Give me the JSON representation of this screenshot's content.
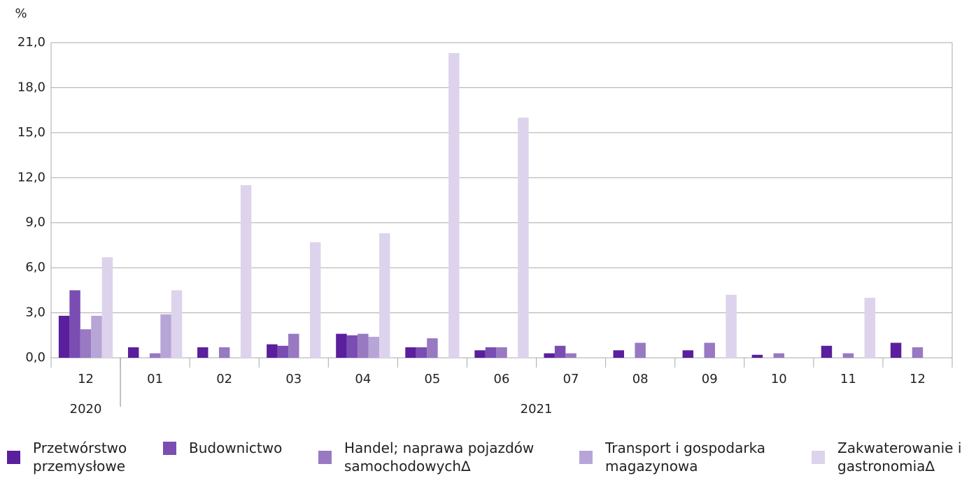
{
  "chart_data": {
    "type": "bar",
    "y_unit": "%",
    "categories": [
      "12",
      "01",
      "02",
      "03",
      "04",
      "05",
      "06",
      "07",
      "08",
      "09",
      "10",
      "11",
      "12"
    ],
    "year_groups": [
      {
        "label": "2020",
        "span": 1
      },
      {
        "label": "2021",
        "span": 12
      }
    ],
    "series": [
      {
        "name": "Przetwórstwo przemysłowe",
        "color": "#5a1f9c",
        "values": [
          2.8,
          0.7,
          0.7,
          0.9,
          1.6,
          0.7,
          0.5,
          0.3,
          0.5,
          0.5,
          0.2,
          0.8,
          1.0
        ]
      },
      {
        "name": "Budownictwo",
        "color": "#7a4db3",
        "values": [
          4.5,
          0,
          0,
          0.8,
          1.5,
          0.7,
          0.7,
          0.8,
          0,
          0,
          0,
          0,
          0
        ]
      },
      {
        "name": "Handel; naprawa pojazdów samochodowych∆",
        "color": "#9879c2",
        "values": [
          1.9,
          0.3,
          0.7,
          1.6,
          1.6,
          1.3,
          0.7,
          0.3,
          1.0,
          1.0,
          0.3,
          0.3,
          0.7
        ]
      },
      {
        "name": "Transport i gospodarka magazynowa",
        "color": "#b8a5d7",
        "values": [
          2.8,
          2.9,
          0,
          0,
          1.4,
          0,
          0,
          0,
          0,
          0,
          0,
          0,
          0
        ]
      },
      {
        "name": "Zakwaterowanie i gastronomia∆",
        "color": "#ddd3ec",
        "values": [
          6.7,
          4.5,
          11.5,
          7.7,
          8.3,
          20.3,
          16.0,
          0,
          0,
          4.2,
          0,
          4.0,
          0
        ]
      }
    ],
    "ylim": [
      0,
      21
    ],
    "yticks": [
      {
        "value": 0,
        "label": "0,0"
      },
      {
        "value": 3,
        "label": "3,0"
      },
      {
        "value": 6,
        "label": "6,0"
      },
      {
        "value": 9,
        "label": "9,0"
      },
      {
        "value": 12,
        "label": "12,0"
      },
      {
        "value": 15,
        "label": "15,0"
      },
      {
        "value": 18,
        "label": "18,0"
      },
      {
        "value": 21,
        "label": "21,0"
      }
    ],
    "grid": true
  }
}
